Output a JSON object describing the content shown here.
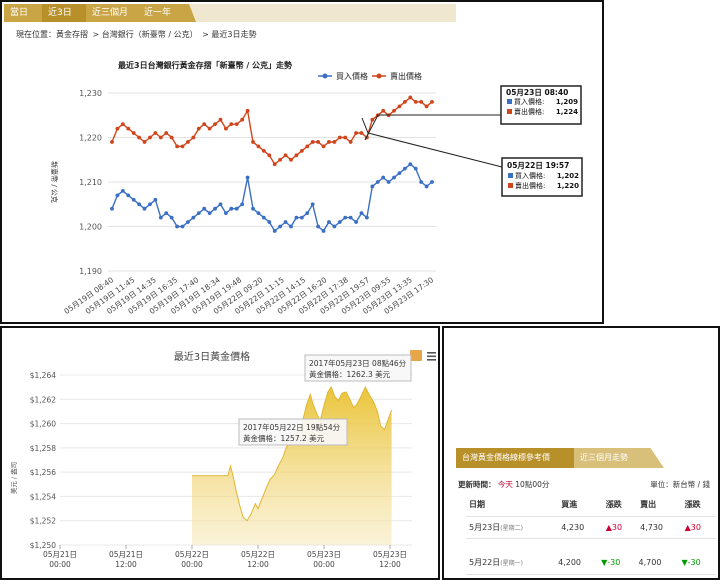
{
  "tabs": [
    "當日",
    "近3日",
    "近三個月",
    "近一年"
  ],
  "breadcrumb": [
    "現在位置：黃金存摺",
    "台灣銀行（新臺幣 / 公克）",
    "最近3日走勢"
  ],
  "twd_chart": {
    "chart_data": {
      "type": "line",
      "title": "最近3日台灣銀行黃金存摺「新臺幣 / 公克」走勢",
      "ylabel": "新臺幣 / 公克",
      "ylim": [
        1190,
        1230
      ],
      "yticks": [
        "1,230",
        "1,220",
        "1,210",
        "1,200",
        "1,190"
      ],
      "x_labels": [
        "05月19日 08:40",
        "05月19日 11:45",
        "05月19日 14:35",
        "05月19日 16:35",
        "05月19日 17:40",
        "05月19日 18:34",
        "05月19日 19:48",
        "05月22日 09:20",
        "05月22日 11:15",
        "05月22日 14:15",
        "05月22日 16:20",
        "05月22日 17:38",
        "05月22日 19:57",
        "05月23日 09:55",
        "05月23日 13:35",
        "05月23日 17:30"
      ],
      "series": [
        {
          "name": "買入價格",
          "color": "#3a6fc4",
          "values": [
            1204,
            1207,
            1208,
            1207,
            1206,
            1205,
            1204,
            1205,
            1206,
            1202,
            1203,
            1202,
            1200,
            1200,
            1201,
            1202,
            1203,
            1204,
            1203,
            1204,
            1205,
            1203,
            1204,
            1204,
            1205,
            1211,
            1204,
            1203,
            1202,
            1201,
            1199,
            1200,
            1201,
            1200,
            1202,
            1202,
            1203,
            1205,
            1200,
            1199,
            1201,
            1200,
            1201,
            1202,
            1202,
            1201,
            1203,
            1202,
            1209,
            1210,
            1211,
            1210,
            1211,
            1212,
            1213,
            1214,
            1213,
            1210,
            1209,
            1210
          ]
        },
        {
          "name": "賣出價格",
          "color": "#d0451b",
          "values": [
            1219,
            1222,
            1223,
            1222,
            1221,
            1220,
            1219,
            1220,
            1221,
            1220,
            1221,
            1220,
            1218,
            1218,
            1219,
            1220,
            1222,
            1223,
            1222,
            1223,
            1224,
            1222,
            1223,
            1223,
            1224,
            1226,
            1219,
            1218,
            1217,
            1216,
            1214,
            1215,
            1216,
            1215,
            1216,
            1217,
            1218,
            1219,
            1219,
            1218,
            1219,
            1219,
            1220,
            1220,
            1219,
            1221,
            1221,
            1220,
            1224,
            1225,
            1226,
            1225,
            1226,
            1227,
            1228,
            1229,
            1228,
            1228,
            1227,
            1228
          ]
        }
      ]
    },
    "legend": [
      "買入價格",
      "賣出價格"
    ],
    "tooltip1": {
      "date": "05月23日 08:40",
      "buy_label": "買入價格:",
      "buy": "1,209",
      "sell_label": "賣出價格:",
      "sell": "1,224"
    },
    "tooltip2": {
      "date": "05月22日 19:57",
      "buy_label": "買入價格:",
      "buy": "1,202",
      "sell_label": "賣出價格:",
      "sell": "1,220"
    }
  },
  "usd_chart": {
    "chart_data": {
      "type": "area",
      "title": "最近3日黃金價格",
      "ylabel": "美元 / 盎司",
      "ylim": [
        1250,
        1264
      ],
      "yticks": [
        "$1,264",
        "$1,262",
        "$1,260",
        "$1,258",
        "$1,256",
        "$1,254",
        "$1,252",
        "$1,250"
      ],
      "x_labels": [
        [
          "05月21日",
          "00:00"
        ],
        [
          "05月21日",
          "12:00"
        ],
        [
          "05月22日",
          "00:00"
        ],
        [
          "05月22日",
          "12:00"
        ],
        [
          "05月23日",
          "00:00"
        ],
        [
          "05月23日",
          "12:00"
        ]
      ],
      "x_hours": [
        0,
        12,
        24,
        36,
        48,
        60
      ],
      "points": [
        [
          24,
          1255.7
        ],
        [
          30.5,
          1255.7
        ],
        [
          31,
          1256.5
        ],
        [
          31.5,
          1255.6
        ],
        [
          32,
          1254.5
        ],
        [
          32.7,
          1253.2
        ],
        [
          33.3,
          1252.3
        ],
        [
          34,
          1252.0
        ],
        [
          34.8,
          1252.6
        ],
        [
          35.5,
          1253.4
        ],
        [
          36,
          1253.0
        ],
        [
          36.7,
          1253.8
        ],
        [
          37.5,
          1254.7
        ],
        [
          38.2,
          1255.4
        ],
        [
          39,
          1255.8
        ],
        [
          39.8,
          1256.6
        ],
        [
          40.5,
          1257.2
        ],
        [
          41.2,
          1258.1
        ],
        [
          42,
          1258.5
        ],
        [
          42.8,
          1259.2
        ],
        [
          43.5,
          1259.8
        ],
        [
          44,
          1260.0
        ],
        [
          44.8,
          1261.5
        ],
        [
          45.5,
          1262.4
        ],
        [
          46,
          1261.6
        ],
        [
          46.7,
          1260.8
        ],
        [
          47.3,
          1260.2
        ],
        [
          48,
          1261.5
        ],
        [
          48.7,
          1262.6
        ],
        [
          49.3,
          1263.0
        ],
        [
          50,
          1262.2
        ],
        [
          50.6,
          1261.9
        ],
        [
          51.3,
          1262.5
        ],
        [
          52,
          1262.6
        ],
        [
          52.7,
          1262.0
        ],
        [
          53.4,
          1261.3
        ],
        [
          54,
          1261.6
        ],
        [
          54.8,
          1262.3
        ],
        [
          55.5,
          1263.0
        ],
        [
          56.2,
          1262.4
        ],
        [
          57,
          1261.8
        ],
        [
          57.7,
          1261.0
        ],
        [
          58.3,
          1259.8
        ],
        [
          59,
          1259.5
        ],
        [
          59.7,
          1260.4
        ],
        [
          60.3,
          1261.1
        ]
      ]
    },
    "tooltip1": {
      "time": "2017年05月23日 08點46分",
      "price": "黃金價格：1262.3 美元"
    },
    "tooltip2": {
      "time": "2017年05月22日 19點54分",
      "price": "黃金價格：1257.2 美元"
    }
  },
  "ref_table": {
    "tab_active": "台灣黃金價格線標參考價",
    "tab_other": "近三個月走勢",
    "update_label": "更新時間：",
    "update_today": "今天",
    "update_time": "10點00分",
    "unit": "單位：新台幣 / 錢",
    "headers": [
      "日期",
      "買進",
      "漲跌",
      "賣出",
      "漲跌"
    ],
    "rows": [
      {
        "date": "5月23日",
        "weekday": "(星期二)",
        "buy": "4,230",
        "buy_chg": "▲30",
        "sell": "4,730",
        "sell_chg": "▲30",
        "dir": "up"
      },
      {
        "date": "5月22日",
        "weekday": "(星期一)",
        "buy": "4,200",
        "buy_chg": "▼-30",
        "sell": "4,700",
        "sell_chg": "▼-30",
        "dir": "down"
      }
    ]
  }
}
